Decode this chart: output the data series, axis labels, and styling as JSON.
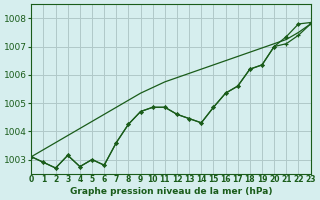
{
  "title": "Graphe pression niveau de la mer (hPa)",
  "background_color": "#d6eeee",
  "grid_color": "#b0c8c8",
  "line_color": "#1a5c1a",
  "xlim": [
    0,
    23
  ],
  "ylim": [
    1002.5,
    1008.5
  ],
  "yticks": [
    1003,
    1004,
    1005,
    1006,
    1007,
    1008
  ],
  "xticks": [
    0,
    1,
    2,
    3,
    4,
    5,
    6,
    7,
    8,
    9,
    10,
    11,
    12,
    13,
    14,
    15,
    16,
    17,
    18,
    19,
    20,
    21,
    22,
    23
  ],
  "xtick_labels": [
    "0",
    "1",
    "2",
    "3",
    "4",
    "5",
    "6",
    "7",
    "8",
    "9",
    "10",
    "11",
    "12",
    "13",
    "14",
    "15",
    "16",
    "17",
    "18",
    "19",
    "20",
    "21",
    "22",
    "23"
  ],
  "series1": [
    1003.1,
    1002.9,
    1002.7,
    1003.15,
    1002.75,
    1003.0,
    1002.8,
    1003.6,
    1004.25,
    1004.7,
    1004.85,
    1004.85,
    1004.6,
    1004.45,
    1004.3,
    1004.85,
    1005.35,
    1005.6,
    1006.2,
    1006.35,
    1007.0,
    1007.1,
    1007.4,
    1007.8
  ],
  "series2": [
    1003.1,
    1002.9,
    1002.7,
    1003.15,
    1002.75,
    1003.0,
    1002.8,
    1003.6,
    1004.25,
    1004.7,
    1004.85,
    1004.85,
    1004.6,
    1004.45,
    1004.3,
    1004.85,
    1005.35,
    1005.6,
    1006.2,
    1006.35,
    1007.0,
    1007.35,
    1007.8,
    1007.85
  ],
  "trend_line": [
    1003.1,
    1003.35,
    1003.6,
    1003.85,
    1004.1,
    1004.35,
    1004.6,
    1004.85,
    1005.1,
    1005.35,
    1005.55,
    1005.75,
    1005.9,
    1006.05,
    1006.2,
    1006.35,
    1006.5,
    1006.65,
    1006.8,
    1006.95,
    1007.1,
    1007.25,
    1007.5,
    1007.8
  ]
}
